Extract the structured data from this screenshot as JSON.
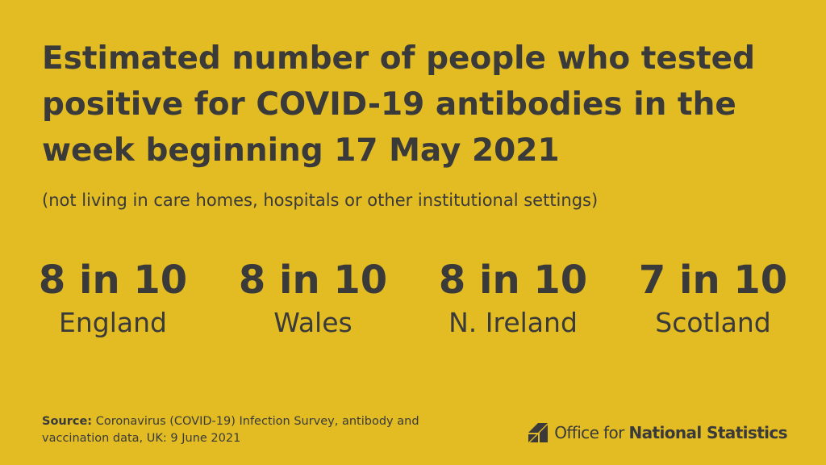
{
  "title": "Estimated number of people who tested positive for COVID-19 antibodies in the week beginning 17 May 2021",
  "subtitle": "(not living in care homes, hospitals or other institutional settings)",
  "stats": [
    {
      "value": "8 in 10",
      "label": "England"
    },
    {
      "value": "8 in 10",
      "label": "Wales"
    },
    {
      "value": "8 in 10",
      "label": "N. Ireland"
    },
    {
      "value": "7 in 10",
      "label": "Scotland"
    }
  ],
  "source": {
    "label": "Source:",
    "text": "Coronavirus (COVID-19) Infection Survey, antibody and vaccination data, UK: 9 June 2021"
  },
  "branding": {
    "name_part1": "Office for ",
    "name_part2": "National Statistics",
    "logo_icon": "ons-logo-icon"
  },
  "colors": {
    "background": "#E2BC22",
    "text": "#3A3A3A"
  }
}
